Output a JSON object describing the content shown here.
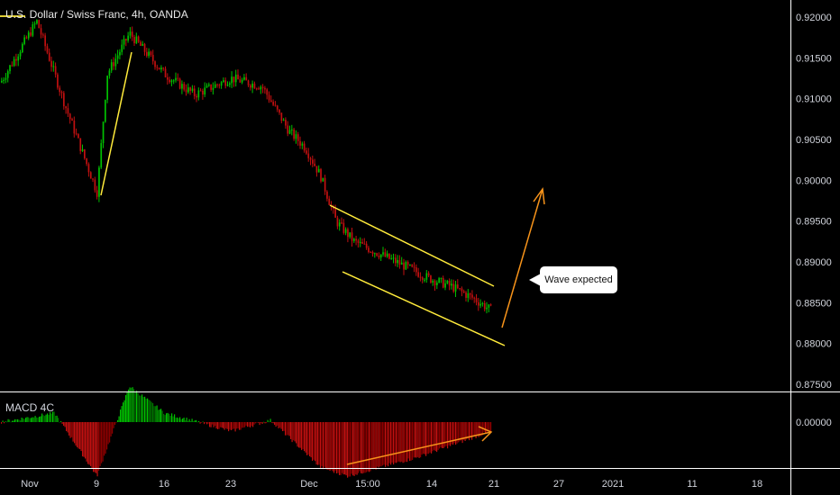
{
  "header": {
    "title": "U.S. Dollar / Swiss Franc, 4h, OANDA"
  },
  "indicator": {
    "label": "MACD 4C"
  },
  "annotation": {
    "text": "Wave expected"
  },
  "colors": {
    "up": "#26a69a",
    "up_bright": "#00c000",
    "down": "#c01010",
    "channel": "#ffeb3b",
    "arrow": "#f7931a",
    "axis_text": "#d1d4dc",
    "separator": "#ffffff"
  },
  "chart_data": {
    "type": "candlestick",
    "symbol": "USDCHF",
    "timeframe": "4h",
    "price_axis": {
      "ticks": [
        "0.92000",
        "0.91500",
        "0.91000",
        "0.90500",
        "0.90000",
        "0.89500",
        "0.89000",
        "0.88500",
        "0.88000",
        "0.87500"
      ],
      "range": [
        0.8745,
        0.9213
      ]
    },
    "macd_axis": {
      "ticks": [
        "0.00000"
      ]
    },
    "time_axis": {
      "ticks": [
        "Nov",
        "9",
        "16",
        "23",
        "Dec",
        "15:00",
        "14",
        "21",
        "27",
        "2021",
        "11",
        "18"
      ]
    },
    "price_path": [
      {
        "x": "Nov 1",
        "y": 0.912
      },
      {
        "x": "Nov 4",
        "y": 0.9195
      },
      {
        "x": "Nov 6",
        "y": 0.909
      },
      {
        "x": "Nov 9",
        "y": 0.8985
      },
      {
        "x": "Nov 10",
        "y": 0.913
      },
      {
        "x": "Nov 12",
        "y": 0.918
      },
      {
        "x": "Nov 16",
        "y": 0.913
      },
      {
        "x": "Nov 19",
        "y": 0.9105
      },
      {
        "x": "Nov 23",
        "y": 0.9125
      },
      {
        "x": "Nov 26",
        "y": 0.9115
      },
      {
        "x": "Nov 30",
        "y": 0.906
      },
      {
        "x": "Dec 1",
        "y": 0.904
      },
      {
        "x": "Dec 2",
        "y": 0.9005
      },
      {
        "x": "Dec 4",
        "y": 0.895
      },
      {
        "x": "Dec 7",
        "y": 0.8925
      },
      {
        "x": "Dec 9",
        "y": 0.891
      },
      {
        "x": "Dec 11",
        "y": 0.8895
      },
      {
        "x": "Dec 14",
        "y": 0.888
      },
      {
        "x": "Dec 16",
        "y": 0.887
      },
      {
        "x": "Dec 18",
        "y": 0.8855
      },
      {
        "x": "Dec 21",
        "y": 0.884
      }
    ],
    "macd_histogram_profile": [
      {
        "x": "Nov 1",
        "y": 0.0
      },
      {
        "x": "Nov 6",
        "y": 0.0005
      },
      {
        "x": "Nov 9",
        "y": -0.003
      },
      {
        "x": "Nov 12",
        "y": 0.002
      },
      {
        "x": "Nov 16",
        "y": 0.0005
      },
      {
        "x": "Nov 23",
        "y": -0.0005
      },
      {
        "x": "Nov 30",
        "y": 0.0001
      },
      {
        "x": "Dec 4",
        "y": -0.0025
      },
      {
        "x": "Dec 9",
        "y": -0.003
      },
      {
        "x": "Dec 14",
        "y": -0.002
      },
      {
        "x": "Dec 21",
        "y": -0.0005
      }
    ]
  }
}
